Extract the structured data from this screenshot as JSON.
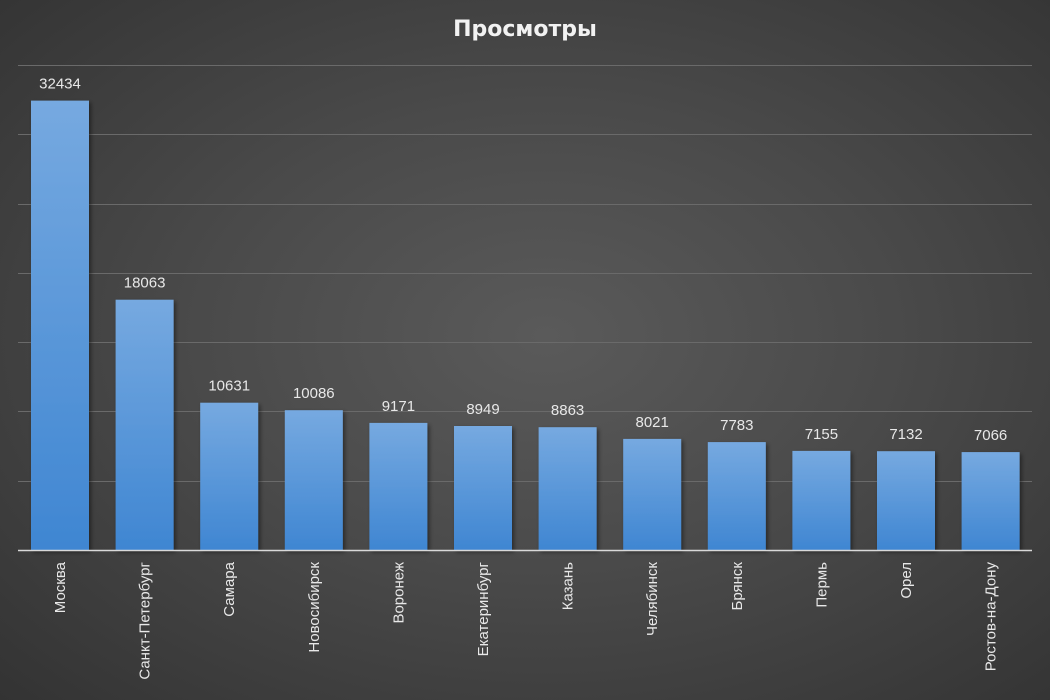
{
  "chart_data": {
    "type": "bar",
    "title": "Просмотры",
    "xlabel": "",
    "ylabel": "",
    "categories": [
      "Москва",
      "Санкт-Петербург",
      "Самара",
      "Новосибирск",
      "Воронеж",
      "Екатеринбург",
      "Казань",
      "Челябинск",
      "Брянск",
      "Пермь",
      "Орел",
      "Ростов-на-Дону"
    ],
    "values": [
      32434,
      18063,
      10631,
      10086,
      9171,
      8949,
      8863,
      8021,
      7783,
      7155,
      7132,
      7066
    ],
    "ylim": [
      0,
      35000
    ],
    "gridlines": [
      0,
      5000,
      10000,
      15000,
      20000,
      25000,
      30000,
      35000
    ],
    "grid": true,
    "legend": "none",
    "colors": {
      "bar_top": "#76a9e0",
      "bar_bottom": "#3f86d2",
      "text": "#e8e8e8"
    }
  }
}
